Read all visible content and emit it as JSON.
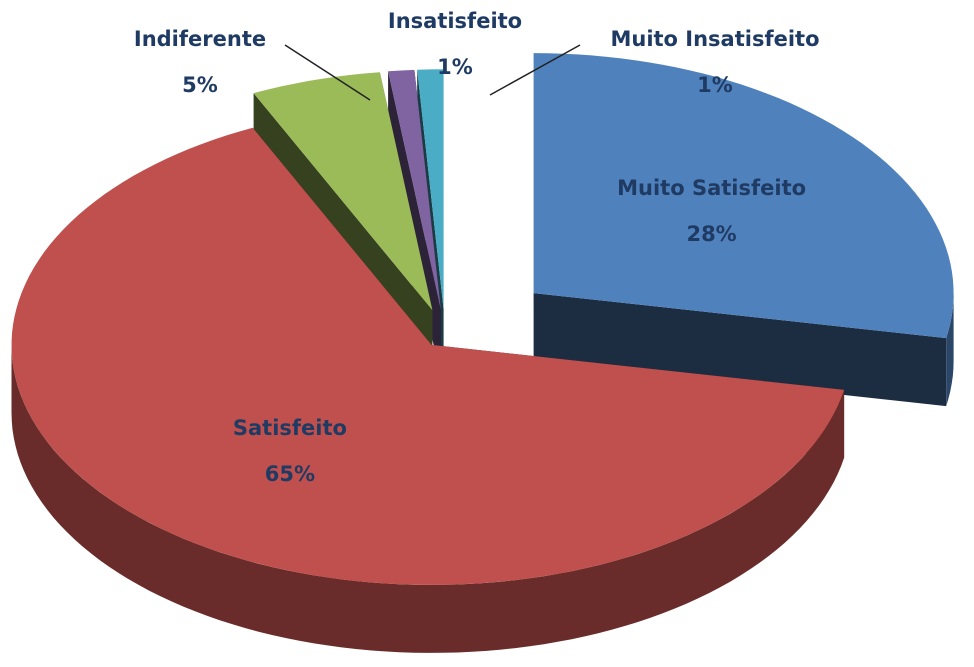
{
  "chart_data": {
    "type": "pie",
    "categories": [
      "Muito Satisfeito",
      "Satisfeito",
      "Indiferente",
      "Insatisfeito",
      "Muito Insatisfeito"
    ],
    "values": [
      28,
      65,
      5,
      1,
      1
    ],
    "value_labels": [
      "28%",
      "65%",
      "5%",
      "1%",
      "1%"
    ],
    "colors": [
      "#4f81bd",
      "#c0504d",
      "#9bbb59",
      "#8064a2",
      "#4bacc6"
    ]
  }
}
